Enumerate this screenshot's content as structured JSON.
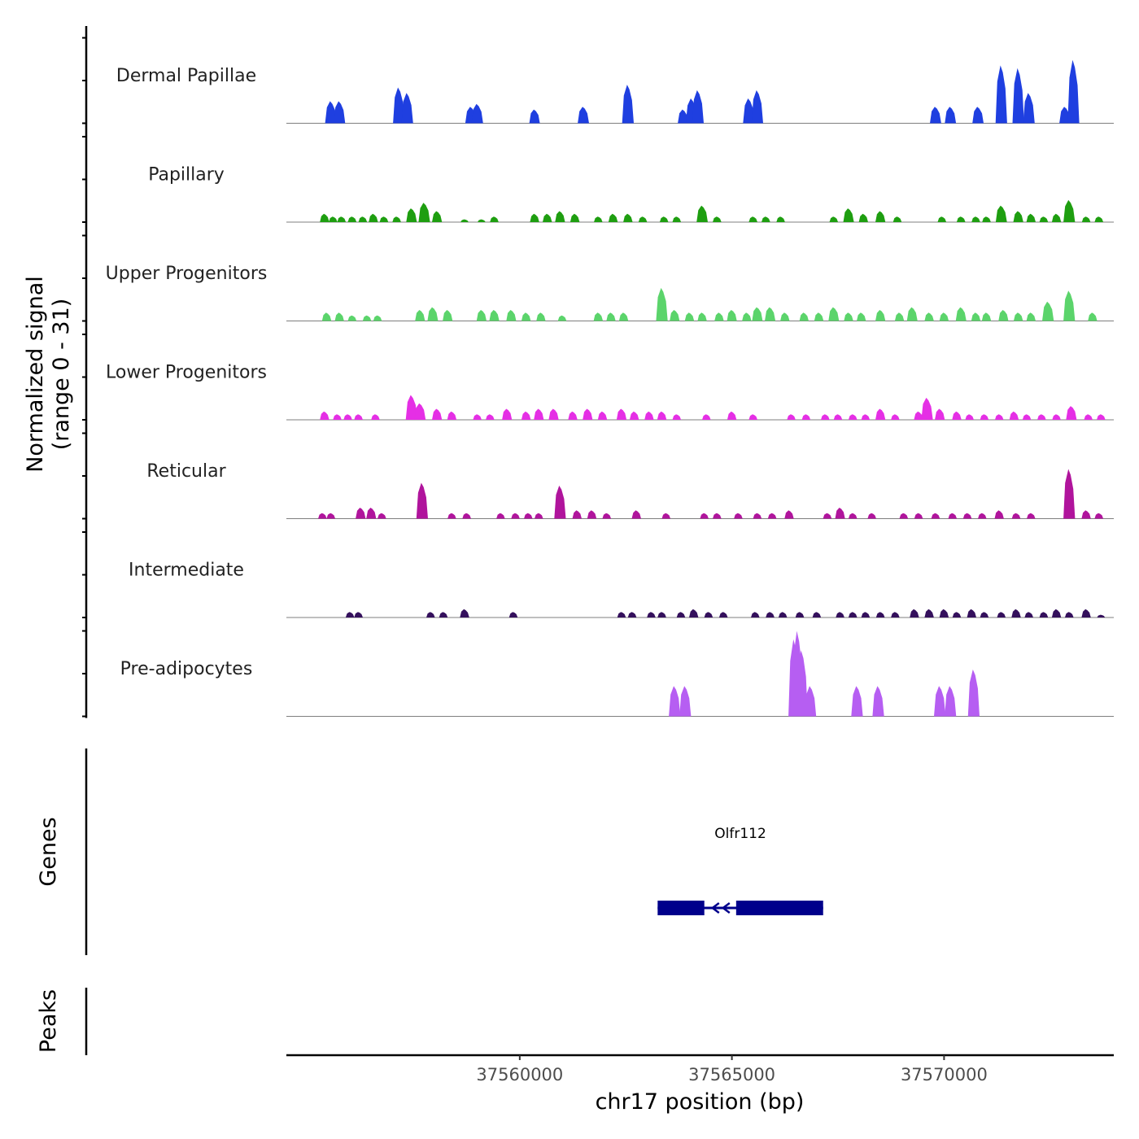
{
  "chart_data": {
    "type": "coverage-tracks",
    "chromosome": "chr17",
    "xlim": [
      37554500,
      37574000
    ],
    "ylim": [
      0,
      31
    ],
    "ylabel_line1": "Normalized signal",
    "ylabel_line2": "(range 0 - 31)",
    "xlabel": "chr17 position (bp)",
    "x_ticks": [
      37560000,
      37565000,
      37570000
    ],
    "x_tick_labels": [
      "37560000",
      "37565000",
      "37570000"
    ],
    "tracks": [
      {
        "name": "Dermal Papillae",
        "color": "#1f3fe0",
        "peaks": [
          [
            37555550,
            8
          ],
          [
            37555750,
            8
          ],
          [
            37557150,
            13
          ],
          [
            37557350,
            11
          ],
          [
            37558850,
            6
          ],
          [
            37559000,
            7
          ],
          [
            37560350,
            5
          ],
          [
            37561500,
            6
          ],
          [
            37562550,
            14
          ],
          [
            37563850,
            5
          ],
          [
            37564050,
            9
          ],
          [
            37564200,
            12
          ],
          [
            37565400,
            9
          ],
          [
            37565600,
            12
          ],
          [
            37569800,
            6
          ],
          [
            37570150,
            6
          ],
          [
            37570800,
            6
          ],
          [
            37571350,
            21
          ],
          [
            37571750,
            20
          ],
          [
            37572000,
            11
          ],
          [
            37572850,
            6
          ],
          [
            37573050,
            23
          ]
        ]
      },
      {
        "name": "Papillary",
        "color": "#1e9e10",
        "peaks": [
          [
            37555400,
            3
          ],
          [
            37555600,
            2
          ],
          [
            37555800,
            2
          ],
          [
            37556050,
            2
          ],
          [
            37556300,
            2
          ],
          [
            37556550,
            3
          ],
          [
            37556800,
            2
          ],
          [
            37557100,
            2
          ],
          [
            37557450,
            5
          ],
          [
            37557750,
            7
          ],
          [
            37558050,
            4
          ],
          [
            37558700,
            1
          ],
          [
            37559100,
            1
          ],
          [
            37559400,
            2
          ],
          [
            37560350,
            3
          ],
          [
            37560650,
            3
          ],
          [
            37560950,
            4
          ],
          [
            37561300,
            3
          ],
          [
            37561850,
            2
          ],
          [
            37562200,
            3
          ],
          [
            37562550,
            3
          ],
          [
            37562900,
            2
          ],
          [
            37563400,
            2
          ],
          [
            37563700,
            2
          ],
          [
            37564300,
            6
          ],
          [
            37564650,
            2
          ],
          [
            37565500,
            2
          ],
          [
            37565800,
            2
          ],
          [
            37566150,
            2
          ],
          [
            37567400,
            2
          ],
          [
            37567750,
            5
          ],
          [
            37568100,
            3
          ],
          [
            37568500,
            4
          ],
          [
            37568900,
            2
          ],
          [
            37569950,
            2
          ],
          [
            37570400,
            2
          ],
          [
            37570750,
            2
          ],
          [
            37571000,
            2
          ],
          [
            37571350,
            6
          ],
          [
            37571750,
            4
          ],
          [
            37572050,
            3
          ],
          [
            37572350,
            2
          ],
          [
            37572650,
            3
          ],
          [
            37572950,
            8
          ],
          [
            37573350,
            2
          ],
          [
            37573650,
            2
          ]
        ]
      },
      {
        "name": "Upper Progenitors",
        "color": "#5bd46b",
        "peaks": [
          [
            37555450,
            3
          ],
          [
            37555750,
            3
          ],
          [
            37556050,
            2
          ],
          [
            37556400,
            2
          ],
          [
            37556650,
            2
          ],
          [
            37557650,
            4
          ],
          [
            37557950,
            5
          ],
          [
            37558300,
            4
          ],
          [
            37559100,
            4
          ],
          [
            37559400,
            4
          ],
          [
            37559800,
            4
          ],
          [
            37560150,
            3
          ],
          [
            37560500,
            3
          ],
          [
            37561000,
            2
          ],
          [
            37561850,
            3
          ],
          [
            37562150,
            3
          ],
          [
            37562450,
            3
          ],
          [
            37563350,
            12
          ],
          [
            37563650,
            4
          ],
          [
            37564000,
            3
          ],
          [
            37564300,
            3
          ],
          [
            37564700,
            3
          ],
          [
            37565000,
            4
          ],
          [
            37565350,
            3
          ],
          [
            37565600,
            5
          ],
          [
            37565900,
            5
          ],
          [
            37566250,
            3
          ],
          [
            37566700,
            3
          ],
          [
            37567050,
            3
          ],
          [
            37567400,
            5
          ],
          [
            37567750,
            3
          ],
          [
            37568050,
            3
          ],
          [
            37568500,
            4
          ],
          [
            37568950,
            3
          ],
          [
            37569250,
            5
          ],
          [
            37569650,
            3
          ],
          [
            37570000,
            3
          ],
          [
            37570400,
            5
          ],
          [
            37570750,
            3
          ],
          [
            37571000,
            3
          ],
          [
            37571400,
            4
          ],
          [
            37571750,
            3
          ],
          [
            37572050,
            3
          ],
          [
            37572450,
            7
          ],
          [
            37572950,
            11
          ],
          [
            37573500,
            3
          ]
        ]
      },
      {
        "name": "Lower Progenitors",
        "color": "#e52fe5",
        "peaks": [
          [
            37555400,
            3
          ],
          [
            37555700,
            2
          ],
          [
            37555950,
            2
          ],
          [
            37556200,
            2
          ],
          [
            37556600,
            2
          ],
          [
            37557450,
            9
          ],
          [
            37557650,
            6
          ],
          [
            37558050,
            4
          ],
          [
            37558400,
            3
          ],
          [
            37559000,
            2
          ],
          [
            37559300,
            2
          ],
          [
            37559700,
            4
          ],
          [
            37560150,
            3
          ],
          [
            37560450,
            4
          ],
          [
            37560800,
            4
          ],
          [
            37561250,
            3
          ],
          [
            37561600,
            4
          ],
          [
            37561950,
            3
          ],
          [
            37562400,
            4
          ],
          [
            37562700,
            3
          ],
          [
            37563050,
            3
          ],
          [
            37563350,
            3
          ],
          [
            37563700,
            2
          ],
          [
            37564400,
            2
          ],
          [
            37565000,
            3
          ],
          [
            37565500,
            2
          ],
          [
            37566400,
            2
          ],
          [
            37566750,
            2
          ],
          [
            37567200,
            2
          ],
          [
            37567500,
            2
          ],
          [
            37567850,
            2
          ],
          [
            37568150,
            2
          ],
          [
            37568500,
            4
          ],
          [
            37568850,
            2
          ],
          [
            37569400,
            3
          ],
          [
            37569600,
            8
          ],
          [
            37569900,
            4
          ],
          [
            37570300,
            3
          ],
          [
            37570600,
            2
          ],
          [
            37570950,
            2
          ],
          [
            37571300,
            2
          ],
          [
            37571650,
            3
          ],
          [
            37571950,
            2
          ],
          [
            37572300,
            2
          ],
          [
            37572650,
            2
          ],
          [
            37573000,
            5
          ],
          [
            37573400,
            2
          ],
          [
            37573700,
            2
          ]
        ]
      },
      {
        "name": "Reticular",
        "color": "#b0149c",
        "peaks": [
          [
            37555350,
            2
          ],
          [
            37555550,
            2
          ],
          [
            37556250,
            4
          ],
          [
            37556500,
            4
          ],
          [
            37556750,
            2
          ],
          [
            37557700,
            13
          ],
          [
            37558400,
            2
          ],
          [
            37558750,
            2
          ],
          [
            37559550,
            2
          ],
          [
            37559900,
            2
          ],
          [
            37560200,
            2
          ],
          [
            37560450,
            2
          ],
          [
            37560950,
            12
          ],
          [
            37561350,
            3
          ],
          [
            37561700,
            3
          ],
          [
            37562050,
            2
          ],
          [
            37562750,
            3
          ],
          [
            37563450,
            2
          ],
          [
            37564350,
            2
          ],
          [
            37564650,
            2
          ],
          [
            37565150,
            2
          ],
          [
            37565600,
            2
          ],
          [
            37565950,
            2
          ],
          [
            37566350,
            3
          ],
          [
            37567250,
            2
          ],
          [
            37567550,
            4
          ],
          [
            37567850,
            2
          ],
          [
            37568300,
            2
          ],
          [
            37569050,
            2
          ],
          [
            37569400,
            2
          ],
          [
            37569800,
            2
          ],
          [
            37570200,
            2
          ],
          [
            37570550,
            2
          ],
          [
            37570900,
            2
          ],
          [
            37571300,
            3
          ],
          [
            37571700,
            2
          ],
          [
            37572050,
            2
          ],
          [
            37572950,
            18
          ],
          [
            37573350,
            3
          ],
          [
            37573650,
            2
          ]
        ]
      },
      {
        "name": "Intermediate",
        "color": "#34105c",
        "peaks": [
          [
            37556000,
            2
          ],
          [
            37556200,
            2
          ],
          [
            37557900,
            2
          ],
          [
            37558200,
            2
          ],
          [
            37558700,
            3
          ],
          [
            37559850,
            2
          ],
          [
            37562400,
            2
          ],
          [
            37562650,
            2
          ],
          [
            37563100,
            2
          ],
          [
            37563350,
            2
          ],
          [
            37563800,
            2
          ],
          [
            37564100,
            3
          ],
          [
            37564450,
            2
          ],
          [
            37564800,
            2
          ],
          [
            37565550,
            2
          ],
          [
            37565900,
            2
          ],
          [
            37566200,
            2
          ],
          [
            37566600,
            2
          ],
          [
            37567000,
            2
          ],
          [
            37567550,
            2
          ],
          [
            37567850,
            2
          ],
          [
            37568150,
            2
          ],
          [
            37568500,
            2
          ],
          [
            37568850,
            2
          ],
          [
            37569300,
            3
          ],
          [
            37569650,
            3
          ],
          [
            37570000,
            3
          ],
          [
            37570300,
            2
          ],
          [
            37570650,
            3
          ],
          [
            37570950,
            2
          ],
          [
            37571350,
            2
          ],
          [
            37571700,
            3
          ],
          [
            37572000,
            2
          ],
          [
            37572350,
            2
          ],
          [
            37572650,
            3
          ],
          [
            37572950,
            2
          ],
          [
            37573350,
            3
          ],
          [
            37573700,
            1
          ]
        ]
      },
      {
        "name": "Pre-adipocytes",
        "color": "#b65ef2",
        "peaks": [
          [
            37563650,
            11
          ],
          [
            37563900,
            11
          ],
          [
            37566470,
            28
          ],
          [
            37566550,
            31
          ],
          [
            37566650,
            24
          ],
          [
            37566850,
            11
          ],
          [
            37567950,
            11
          ],
          [
            37568450,
            11
          ],
          [
            37569900,
            11
          ],
          [
            37570150,
            11
          ],
          [
            37570700,
            17
          ]
        ]
      }
    ],
    "gene_track": {
      "label": "Genes",
      "color": "#00008b",
      "genes": [
        {
          "name": "Olfr112",
          "start": 37563250,
          "end": 37567150,
          "strand": "-",
          "exons": [
            [
              37563250,
              37564350
            ],
            [
              37565100,
              37567150
            ]
          ]
        }
      ]
    },
    "peak_track": {
      "label": "Peaks",
      "peaks": []
    }
  }
}
